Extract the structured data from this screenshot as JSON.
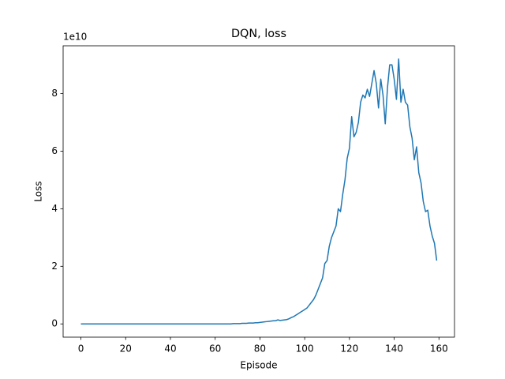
{
  "chart_data": {
    "type": "line",
    "title": "DQN, loss",
    "x_label": "Episode",
    "y_label": "Loss",
    "y_offset_label": "1e10",
    "xlim": [
      -7.95,
      166.95
    ],
    "ylim": [
      -0.46,
      9.66
    ],
    "xticks": [
      0,
      20,
      40,
      60,
      80,
      100,
      120,
      140,
      160
    ],
    "yticks": [
      0,
      2,
      4,
      6,
      8
    ],
    "grid": false,
    "x": [
      0,
      1,
      2,
      3,
      4,
      5,
      6,
      7,
      8,
      9,
      10,
      11,
      12,
      13,
      14,
      15,
      16,
      17,
      18,
      19,
      20,
      21,
      22,
      23,
      24,
      25,
      26,
      27,
      28,
      29,
      30,
      31,
      32,
      33,
      34,
      35,
      36,
      37,
      38,
      39,
      40,
      41,
      42,
      43,
      44,
      45,
      46,
      47,
      48,
      49,
      50,
      51,
      52,
      53,
      54,
      55,
      56,
      57,
      58,
      59,
      60,
      61,
      62,
      63,
      64,
      65,
      66,
      67,
      68,
      69,
      70,
      71,
      72,
      73,
      74,
      75,
      76,
      77,
      78,
      79,
      80,
      81,
      82,
      83,
      84,
      85,
      86,
      87,
      88,
      89,
      90,
      91,
      92,
      93,
      94,
      95,
      96,
      97,
      98,
      99,
      100,
      101,
      102,
      103,
      104,
      105,
      106,
      107,
      108,
      109,
      110,
      111,
      112,
      113,
      114,
      115,
      116,
      117,
      118,
      119,
      120,
      121,
      122,
      123,
      124,
      125,
      126,
      127,
      128,
      129,
      130,
      131,
      132,
      133,
      134,
      135,
      136,
      137,
      138,
      139,
      140,
      141,
      142,
      143,
      144,
      145,
      146,
      147,
      148,
      149,
      150,
      151,
      152,
      153,
      154,
      155,
      156,
      157,
      158,
      159
    ],
    "series": [
      {
        "color": "#1f77b4",
        "values": [
          0,
          0,
          0,
          0,
          0,
          0,
          0,
          0,
          0,
          0,
          0,
          0,
          0,
          0,
          0,
          0,
          0,
          0,
          0,
          0,
          0,
          0,
          0,
          0,
          0,
          0,
          0,
          0,
          0,
          0,
          0,
          0,
          0,
          0,
          0,
          0,
          0,
          0,
          0,
          0,
          0,
          0,
          0,
          0,
          0,
          0,
          0,
          0,
          0,
          0,
          0,
          0,
          0,
          0,
          0,
          0,
          0,
          0,
          0,
          0,
          0,
          0,
          0,
          0,
          0,
          0,
          0,
          0,
          0.01,
          0.01,
          0.01,
          0.01,
          0.02,
          0.02,
          0.02,
          0.03,
          0.03,
          0.03,
          0.04,
          0.04,
          0.05,
          0.06,
          0.07,
          0.08,
          0.09,
          0.1,
          0.11,
          0.11,
          0.14,
          0.12,
          0.13,
          0.14,
          0.15,
          0.18,
          0.22,
          0.25,
          0.3,
          0.35,
          0.4,
          0.45,
          0.5,
          0.55,
          0.65,
          0.75,
          0.85,
          1.0,
          1.2,
          1.4,
          1.6,
          2.1,
          2.2,
          2.7,
          3.0,
          3.2,
          3.4,
          4.0,
          3.9,
          4.5,
          5.0,
          5.75,
          6.1,
          7.2,
          6.5,
          6.65,
          7.0,
          7.7,
          7.95,
          7.85,
          8.15,
          7.9,
          8.35,
          8.8,
          8.35,
          7.5,
          8.5,
          7.95,
          6.95,
          8.2,
          9.0,
          9.0,
          8.5,
          7.8,
          9.2,
          7.7,
          8.15,
          7.7,
          7.6,
          6.85,
          6.45,
          5.7,
          6.15,
          5.25,
          4.9,
          4.25,
          3.9,
          3.95,
          3.4,
          3.05,
          2.8,
          2.2
        ]
      }
    ]
  }
}
